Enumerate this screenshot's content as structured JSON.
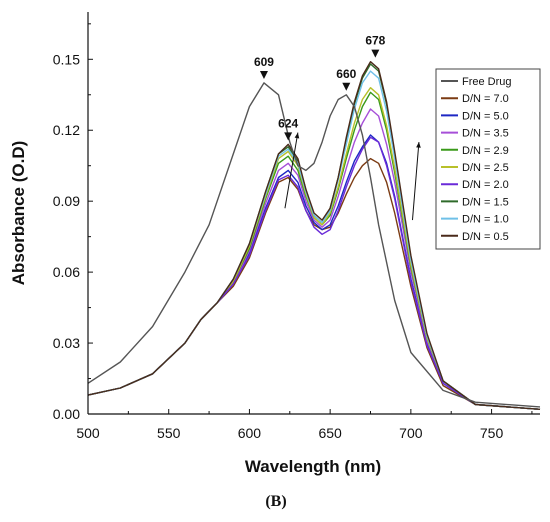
{
  "chart_data": {
    "type": "line",
    "title": "",
    "panel_label": "(B)",
    "xlabel": "Wavelength (nm)",
    "ylabel": "Absorbance (O.D)",
    "xlim": [
      500,
      780
    ],
    "ylim": [
      0,
      0.17
    ],
    "x_ticks": [
      500,
      550,
      600,
      650,
      700,
      750
    ],
    "y_ticks": [
      0.0,
      0.03,
      0.06,
      0.09,
      0.12,
      0.15
    ],
    "y_tick_labels": [
      "0.00",
      "0.03",
      "0.06",
      "0.09",
      "0.12",
      "0.15"
    ],
    "legend_position": "right",
    "grid": false,
    "annotations": [
      {
        "text": "609",
        "x": 609,
        "y": 0.14
      },
      {
        "text": "624",
        "x": 624,
        "y": 0.114
      },
      {
        "text": "660",
        "x": 660,
        "y": 0.135
      },
      {
        "text": "678",
        "x": 678,
        "y": 0.149
      }
    ],
    "arrows": [
      {
        "from": [
          622,
          0.087
        ],
        "to": [
          630,
          0.119
        ]
      },
      {
        "from": [
          701,
          0.082
        ],
        "to": [
          705,
          0.115
        ]
      }
    ],
    "series": [
      {
        "name": "Free Drug",
        "color": "#555555",
        "x": [
          500,
          520,
          540,
          560,
          575,
          590,
          600,
          609,
          618,
          625,
          630,
          635,
          640,
          645,
          650,
          655,
          660,
          665,
          670,
          675,
          680,
          690,
          700,
          720,
          740,
          780
        ],
        "y": [
          0.013,
          0.022,
          0.037,
          0.06,
          0.08,
          0.11,
          0.13,
          0.14,
          0.135,
          0.115,
          0.105,
          0.103,
          0.106,
          0.115,
          0.126,
          0.133,
          0.135,
          0.13,
          0.118,
          0.1,
          0.08,
          0.048,
          0.026,
          0.01,
          0.005,
          0.003
        ]
      },
      {
        "name": "D/N = 7.0",
        "color": "#7b3b13",
        "x": [
          500,
          520,
          540,
          560,
          570,
          580,
          590,
          600,
          610,
          618,
          624,
          630,
          635,
          640,
          645,
          650,
          655,
          660,
          665,
          670,
          675,
          680,
          685,
          690,
          700,
          710,
          720,
          740,
          780
        ],
        "y": [
          0.008,
          0.011,
          0.017,
          0.03,
          0.04,
          0.047,
          0.054,
          0.066,
          0.085,
          0.098,
          0.1,
          0.095,
          0.086,
          0.08,
          0.078,
          0.079,
          0.085,
          0.093,
          0.1,
          0.105,
          0.108,
          0.106,
          0.098,
          0.085,
          0.054,
          0.028,
          0.012,
          0.004,
          0.002
        ]
      },
      {
        "name": "D/N = 5.0",
        "color": "#1e27c4",
        "x": [
          500,
          520,
          540,
          560,
          570,
          580,
          590,
          600,
          610,
          618,
          624,
          630,
          635,
          640,
          645,
          650,
          655,
          660,
          665,
          670,
          675,
          680,
          685,
          690,
          700,
          710,
          720,
          740,
          780
        ],
        "y": [
          0.008,
          0.011,
          0.017,
          0.03,
          0.04,
          0.047,
          0.055,
          0.068,
          0.087,
          0.1,
          0.103,
          0.098,
          0.088,
          0.081,
          0.078,
          0.08,
          0.088,
          0.098,
          0.107,
          0.113,
          0.118,
          0.115,
          0.106,
          0.092,
          0.057,
          0.03,
          0.013,
          0.004,
          0.002
        ]
      },
      {
        "name": "D/N = 3.5",
        "color": "#a64fd8",
        "x": [
          500,
          520,
          540,
          560,
          570,
          580,
          590,
          600,
          610,
          618,
          624,
          630,
          635,
          640,
          645,
          650,
          655,
          660,
          665,
          670,
          675,
          680,
          685,
          690,
          700,
          710,
          720,
          740,
          780
        ],
        "y": [
          0.008,
          0.011,
          0.017,
          0.03,
          0.04,
          0.047,
          0.055,
          0.069,
          0.089,
          0.103,
          0.106,
          0.101,
          0.09,
          0.082,
          0.079,
          0.082,
          0.092,
          0.104,
          0.115,
          0.123,
          0.129,
          0.126,
          0.114,
          0.098,
          0.06,
          0.031,
          0.014,
          0.004,
          0.002
        ]
      },
      {
        "name": "D/N = 2.9",
        "color": "#3a9a1a",
        "x": [
          500,
          520,
          540,
          560,
          570,
          580,
          590,
          600,
          610,
          618,
          624,
          630,
          635,
          640,
          645,
          650,
          655,
          660,
          665,
          670,
          675,
          680,
          685,
          690,
          700,
          710,
          720,
          740,
          780
        ],
        "y": [
          0.008,
          0.011,
          0.017,
          0.03,
          0.04,
          0.047,
          0.056,
          0.07,
          0.091,
          0.106,
          0.109,
          0.103,
          0.092,
          0.083,
          0.08,
          0.084,
          0.095,
          0.108,
          0.12,
          0.13,
          0.136,
          0.133,
          0.12,
          0.102,
          0.062,
          0.032,
          0.014,
          0.004,
          0.002
        ]
      },
      {
        "name": "D/N = 2.5",
        "color": "#b8c02a",
        "x": [
          500,
          520,
          540,
          560,
          570,
          580,
          590,
          600,
          610,
          618,
          624,
          630,
          635,
          640,
          645,
          650,
          655,
          660,
          665,
          670,
          675,
          680,
          685,
          690,
          700,
          710,
          720,
          740,
          780
        ],
        "y": [
          0.008,
          0.011,
          0.017,
          0.03,
          0.04,
          0.047,
          0.056,
          0.071,
          0.092,
          0.108,
          0.111,
          0.105,
          0.093,
          0.083,
          0.08,
          0.085,
          0.096,
          0.11,
          0.123,
          0.133,
          0.138,
          0.135,
          0.122,
          0.104,
          0.063,
          0.032,
          0.014,
          0.004,
          0.002
        ]
      },
      {
        "name": "D/N = 2.0",
        "color": "#6a2ad8",
        "x": [
          500,
          520,
          540,
          560,
          570,
          580,
          590,
          600,
          610,
          618,
          624,
          630,
          635,
          640,
          645,
          650,
          655,
          660,
          665,
          670,
          675,
          680,
          685,
          690,
          700,
          710,
          720,
          740,
          780
        ],
        "y": [
          0.008,
          0.011,
          0.017,
          0.03,
          0.04,
          0.047,
          0.055,
          0.067,
          0.086,
          0.099,
          0.101,
          0.096,
          0.086,
          0.079,
          0.076,
          0.078,
          0.086,
          0.096,
          0.105,
          0.112,
          0.117,
          0.115,
          0.105,
          0.091,
          0.056,
          0.029,
          0.013,
          0.004,
          0.002
        ]
      },
      {
        "name": "D/N = 1.5",
        "color": "#2f6a2a",
        "x": [
          500,
          520,
          540,
          560,
          570,
          580,
          590,
          600,
          610,
          618,
          624,
          630,
          635,
          640,
          645,
          650,
          655,
          660,
          665,
          670,
          675,
          680,
          685,
          690,
          700,
          710,
          720,
          740,
          780
        ],
        "y": [
          0.008,
          0.011,
          0.017,
          0.03,
          0.04,
          0.047,
          0.057,
          0.072,
          0.094,
          0.11,
          0.113,
          0.107,
          0.095,
          0.084,
          0.081,
          0.087,
          0.1,
          0.116,
          0.131,
          0.142,
          0.148,
          0.145,
          0.131,
          0.11,
          0.066,
          0.033,
          0.014,
          0.004,
          0.002
        ]
      },
      {
        "name": "D/N = 1.0",
        "color": "#6fc0e8",
        "x": [
          500,
          520,
          540,
          560,
          570,
          580,
          590,
          600,
          610,
          618,
          624,
          630,
          635,
          640,
          645,
          650,
          655,
          660,
          665,
          670,
          675,
          680,
          685,
          690,
          700,
          710,
          720,
          740,
          780
        ],
        "y": [
          0.008,
          0.011,
          0.017,
          0.03,
          0.04,
          0.047,
          0.057,
          0.072,
          0.093,
          0.109,
          0.112,
          0.106,
          0.094,
          0.084,
          0.081,
          0.086,
          0.099,
          0.114,
          0.129,
          0.14,
          0.145,
          0.142,
          0.128,
          0.108,
          0.065,
          0.033,
          0.014,
          0.004,
          0.002
        ]
      },
      {
        "name": "D/N = 0.5",
        "color": "#4a2a1a",
        "x": [
          500,
          520,
          540,
          560,
          570,
          580,
          590,
          600,
          610,
          618,
          624,
          630,
          635,
          640,
          645,
          650,
          655,
          660,
          665,
          670,
          675,
          680,
          685,
          690,
          700,
          710,
          720,
          740,
          780
        ],
        "y": [
          0.008,
          0.011,
          0.017,
          0.03,
          0.04,
          0.047,
          0.057,
          0.072,
          0.094,
          0.11,
          0.114,
          0.108,
          0.095,
          0.085,
          0.082,
          0.087,
          0.1,
          0.117,
          0.132,
          0.143,
          0.149,
          0.146,
          0.132,
          0.111,
          0.067,
          0.034,
          0.014,
          0.004,
          0.002
        ]
      }
    ]
  }
}
